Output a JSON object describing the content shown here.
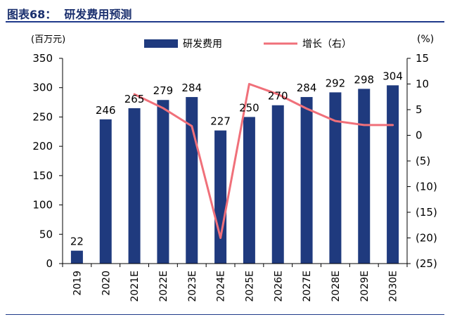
{
  "figure_title": "图表68：  研发费用预测",
  "colors": {
    "bar": "#1f3a7e",
    "line": "#f0707a",
    "title": "#1a2f6e",
    "rule": "#1f3a8a"
  },
  "chart_data": {
    "type": "bar",
    "title": "研发费用预测",
    "categories": [
      "2019",
      "2020",
      "2021E",
      "2022E",
      "2023E",
      "2024E",
      "2025E",
      "2026E",
      "2027E",
      "2028E",
      "2029E",
      "2030E"
    ],
    "series": [
      {
        "name": "研发费用",
        "type": "bar",
        "axis": "left",
        "values": [
          22,
          246,
          265,
          279,
          284,
          227,
          250,
          270,
          284,
          292,
          298,
          304
        ]
      },
      {
        "name": "增长（右）",
        "type": "line",
        "axis": "right",
        "values": [
          null,
          null,
          8,
          5.3,
          1.8,
          -20,
          10,
          8,
          5.2,
          2.8,
          2,
          2
        ]
      }
    ],
    "data_labels": [
      "22",
      "246",
      "265",
      "279",
      "284",
      "227",
      "250",
      "270",
      "284",
      "292",
      "298",
      "304"
    ],
    "left_axis": {
      "unit": "(百万元)",
      "ylim": [
        0,
        350
      ],
      "ticks": [
        0,
        50,
        100,
        150,
        200,
        250,
        300,
        350
      ],
      "tick_labels": [
        "0",
        "50",
        "100",
        "150",
        "200",
        "250",
        "300",
        "350"
      ]
    },
    "right_axis": {
      "unit": "(%)",
      "ylim": [
        -25,
        15
      ],
      "ticks": [
        -25,
        -20,
        -15,
        -10,
        -5,
        0,
        5,
        10,
        15
      ],
      "tick_labels": [
        "(25)",
        "(20)",
        "(15)",
        "(10)",
        "(5)",
        "0",
        "5",
        "10",
        "15"
      ]
    },
    "legend": {
      "position": "top-center",
      "items": [
        "研发费用",
        "增长（右）"
      ]
    },
    "grid": false
  }
}
